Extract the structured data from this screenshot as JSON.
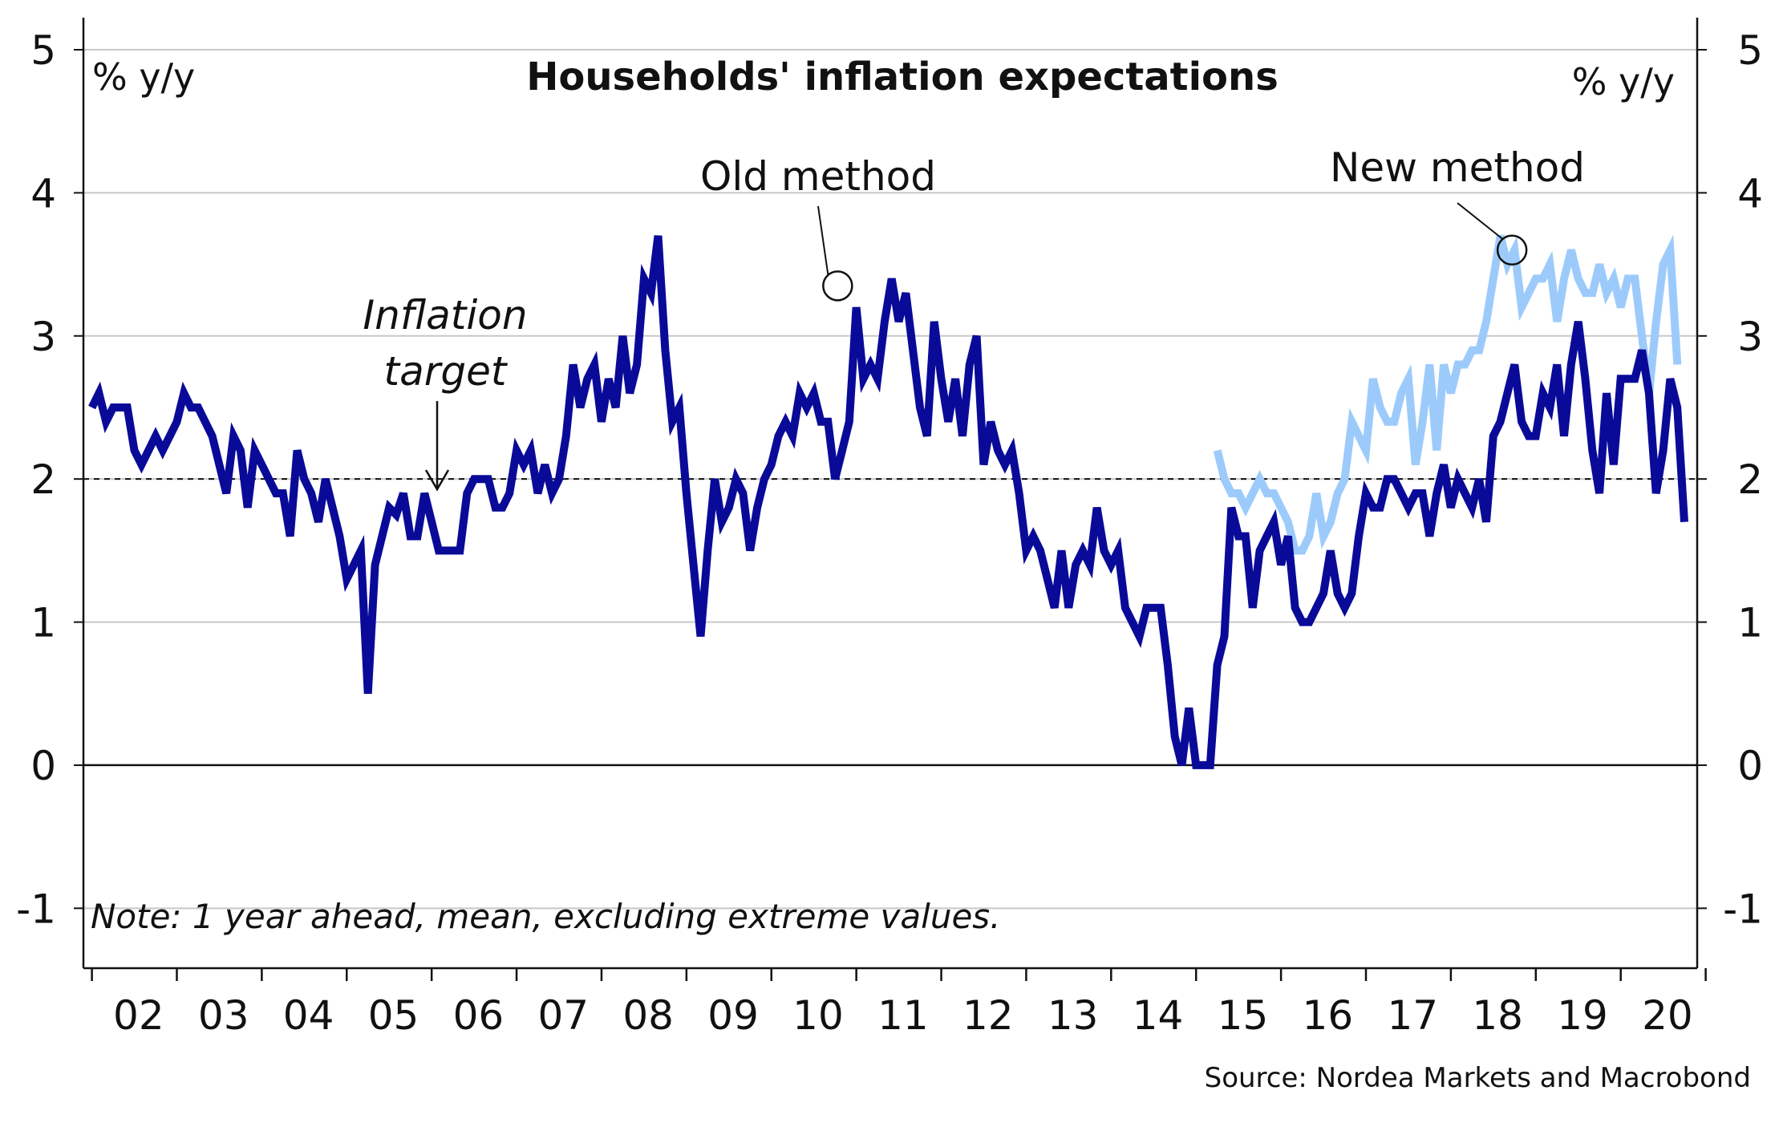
{
  "chart_data": {
    "type": "line",
    "title": "Households' inflation expectations",
    "ylabel_left": "% y/y",
    "ylabel_right": "% y/y",
    "ylim": [
      -1.2,
      5.0
    ],
    "y_ticks": [
      -1,
      0,
      1,
      2,
      3,
      4,
      5
    ],
    "x_range": [
      2001.9,
      2020.9
    ],
    "x_tick_labels": [
      "02",
      "03",
      "04",
      "05",
      "06",
      "07",
      "08",
      "09",
      "10",
      "11",
      "12",
      "13",
      "14",
      "15",
      "16",
      "17",
      "18",
      "19",
      "20"
    ],
    "grid": true,
    "reference_line": {
      "y": 2,
      "style": "dashed"
    },
    "colors": {
      "old": "#0a0a99",
      "new": "#9ccbfb",
      "grid": "#c8c8c8",
      "axis": "#111111"
    },
    "annotations": {
      "target_line1": "Inflation",
      "target_line2": "target",
      "old_label": "Old method",
      "new_label": "New method"
    },
    "note": "Note: 1 year ahead, mean, excluding extreme values.",
    "source": "Source: Nordea Markets and Macrobond",
    "series": [
      {
        "name": "Old method",
        "x_start": 2002.0,
        "step": 0.08333,
        "values": [
          2.5,
          2.6,
          2.4,
          2.5,
          2.5,
          2.5,
          2.2,
          2.1,
          2.2,
          2.3,
          2.2,
          2.3,
          2.4,
          2.6,
          2.5,
          2.5,
          2.4,
          2.3,
          2.1,
          1.9,
          2.3,
          2.2,
          1.8,
          2.2,
          2.1,
          2.0,
          1.9,
          1.9,
          1.6,
          2.2,
          2.0,
          1.9,
          1.7,
          2.0,
          1.8,
          1.6,
          1.3,
          1.4,
          1.5,
          0.5,
          1.4,
          1.6,
          1.8,
          1.75,
          1.9,
          1.6,
          1.6,
          1.9,
          1.7,
          1.5,
          1.5,
          1.5,
          1.5,
          1.9,
          2.0,
          2.0,
          2.0,
          1.8,
          1.8,
          1.9,
          2.2,
          2.1,
          2.2,
          1.9,
          2.1,
          1.9,
          2.0,
          2.3,
          2.8,
          2.5,
          2.7,
          2.8,
          2.4,
          2.7,
          2.5,
          3.0,
          2.6,
          2.8,
          3.4,
          3.3,
          3.7,
          2.9,
          2.4,
          2.5,
          1.9,
          1.4,
          0.9,
          1.5,
          2.0,
          1.7,
          1.8,
          2.0,
          1.9,
          1.5,
          1.8,
          2.0,
          2.1,
          2.3,
          2.4,
          2.3,
          2.6,
          2.5,
          2.6,
          2.4,
          2.4,
          2.0,
          2.2,
          2.4,
          3.2,
          2.7,
          2.8,
          2.7,
          3.1,
          3.4,
          3.1,
          3.3,
          2.9,
          2.5,
          2.3,
          3.1,
          2.7,
          2.4,
          2.7,
          2.3,
          2.8,
          3.0,
          2.1,
          2.4,
          2.2,
          2.1,
          2.2,
          1.9,
          1.5,
          1.6,
          1.5,
          1.3,
          1.1,
          1.5,
          1.1,
          1.4,
          1.5,
          1.4,
          1.8,
          1.5,
          1.4,
          1.5,
          1.1,
          1.0,
          0.9,
          1.1,
          1.1,
          1.1,
          0.7,
          0.2,
          0.0,
          0.4,
          0.0,
          0.0,
          0.0,
          0.7,
          0.9,
          1.8,
          1.6,
          1.6,
          1.1,
          1.5,
          1.6,
          1.7,
          1.4,
          1.6,
          1.1,
          1.0,
          1.0,
          1.1,
          1.2,
          1.5,
          1.2,
          1.1,
          1.2,
          1.6,
          1.9,
          1.8,
          1.8,
          2.0,
          2.0,
          1.9,
          1.8,
          1.9,
          1.9,
          1.6,
          1.9,
          2.1,
          1.8,
          2.0,
          1.9,
          1.8,
          2.0,
          1.7,
          2.3,
          2.4,
          2.6,
          2.8,
          2.4,
          2.3,
          2.3,
          2.6,
          2.5,
          2.8,
          2.3,
          2.8,
          3.1,
          2.7,
          2.2,
          1.9,
          2.6,
          2.1,
          2.7,
          2.7,
          2.7,
          2.9,
          2.6,
          1.9,
          2.2,
          2.7,
          2.5,
          1.7
        ]
      },
      {
        "name": "New method",
        "x_start": 2015.25,
        "step": 0.08333,
        "values": [
          2.2,
          2.0,
          1.9,
          1.9,
          1.8,
          1.9,
          2.0,
          1.9,
          1.9,
          1.8,
          1.7,
          1.5,
          1.5,
          1.6,
          1.9,
          1.6,
          1.7,
          1.9,
          2.0,
          2.4,
          2.3,
          2.2,
          2.7,
          2.5,
          2.4,
          2.4,
          2.6,
          2.7,
          2.1,
          2.4,
          2.8,
          2.2,
          2.8,
          2.6,
          2.8,
          2.8,
          2.9,
          2.9,
          3.1,
          3.4,
          3.7,
          3.5,
          3.6,
          3.2,
          3.3,
          3.4,
          3.4,
          3.5,
          3.1,
          3.4,
          3.6,
          3.4,
          3.3,
          3.3,
          3.5,
          3.3,
          3.4,
          3.2,
          3.4,
          3.4,
          3.0,
          2.6,
          3.1,
          3.5,
          3.6,
          2.8
        ]
      }
    ]
  }
}
